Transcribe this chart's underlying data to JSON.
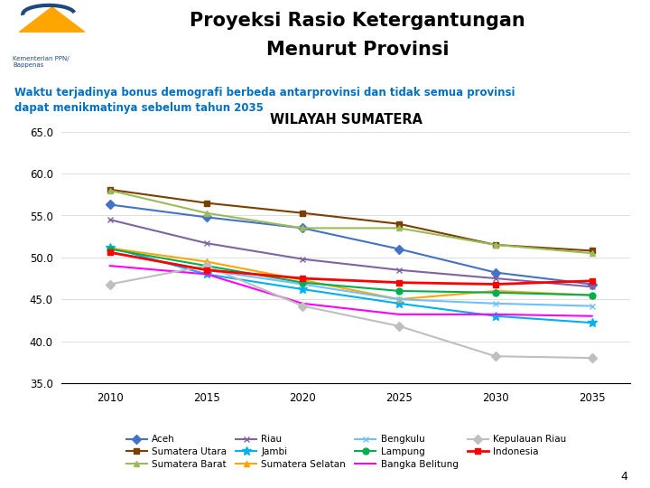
{
  "title_line1": "Proyeksi Rasio Ketergantungan",
  "title_line2": "Menurut Provinsi",
  "subtitle": "Waktu terjadinya bonus demografi berbeda antarprovinsi dan tidak semua provinsi\ndapat menikmatinya sebelum tahun 2035",
  "chart_title": "WILAYAH SUMATERA",
  "years": [
    2010,
    2015,
    2020,
    2025,
    2030,
    2035
  ],
  "series": [
    {
      "name": "Aceh",
      "values": [
        56.3,
        54.8,
        53.5,
        51.0,
        48.2,
        46.8
      ],
      "color": "#4472C4",
      "marker": "D",
      "lw": 1.5
    },
    {
      "name": "Sumatera Utara",
      "values": [
        58.1,
        56.5,
        55.3,
        54.0,
        51.5,
        50.8
      ],
      "color": "#7B3F00",
      "marker": "s",
      "lw": 1.5
    },
    {
      "name": "Sumatera Barat",
      "values": [
        58.0,
        55.3,
        53.5,
        53.5,
        51.5,
        50.5
      ],
      "color": "#9BBB59",
      "marker": "^",
      "lw": 1.5
    },
    {
      "name": "Riau",
      "values": [
        54.5,
        51.7,
        49.8,
        48.5,
        47.5,
        46.5
      ],
      "color": "#8064A2",
      "marker": "x",
      "lw": 1.5
    },
    {
      "name": "Jambi",
      "values": [
        51.2,
        48.0,
        46.2,
        44.5,
        43.0,
        42.2
      ],
      "color": "#00B0F0",
      "marker": "*",
      "lw": 1.5
    },
    {
      "name": "Sumatera Selatan",
      "values": [
        51.1,
        49.5,
        47.3,
        45.0,
        46.0,
        45.5
      ],
      "color": "#FFA500",
      "marker": "^",
      "lw": 1.5
    },
    {
      "name": "Bengkulu",
      "values": [
        50.6,
        48.5,
        46.8,
        45.0,
        44.5,
        44.2
      ],
      "color": "#70BFFF",
      "marker": "x",
      "lw": 1.5
    },
    {
      "name": "Lampung",
      "values": [
        51.0,
        49.0,
        47.0,
        46.0,
        45.8,
        45.5
      ],
      "color": "#00B050",
      "marker": "o",
      "lw": 1.5
    },
    {
      "name": "Bangka Belitung",
      "values": [
        49.0,
        48.0,
        44.5,
        43.2,
        43.2,
        43.0
      ],
      "color": "#FF00FF",
      "marker": null,
      "lw": 1.5
    },
    {
      "name": "Kepulauan Riau",
      "values": [
        46.8,
        49.0,
        44.2,
        41.8,
        38.2,
        38.0
      ],
      "color": "#BFBFBF",
      "marker": "D",
      "lw": 1.5
    },
    {
      "name": "Indonesia",
      "values": [
        50.6,
        48.5,
        47.5,
        47.0,
        46.8,
        47.2
      ],
      "color": "#FF0000",
      "marker": "s",
      "lw": 2.0
    }
  ],
  "ylim": [
    35.0,
    65.0
  ],
  "yticks": [
    35.0,
    40.0,
    45.0,
    50.0,
    55.0,
    60.0,
    65.0
  ],
  "xticks": [
    2010,
    2015,
    2020,
    2025,
    2030,
    2035
  ],
  "bar_top_color": "#1F497D",
  "bar_gold_color": "#FFC000",
  "bar_teal_color": "#00B0A0",
  "background_color": "#FFFFFF",
  "subtitle_color": "#0070C0",
  "title_color": "#000000",
  "page_number": "4"
}
